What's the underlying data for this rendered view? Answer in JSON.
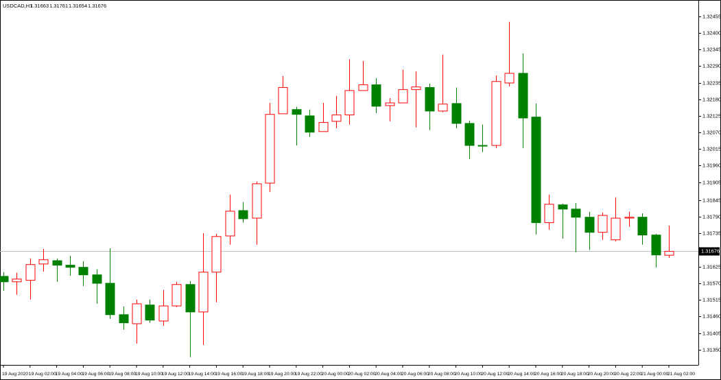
{
  "chart_data": {
    "type": "candlestick",
    "symbol": "USDCAD,H1",
    "categories": [
      "19 Aug 2020",
      null,
      "19 Aug 02:00",
      null,
      "19 Aug 04:00",
      null,
      "19 Aug 06:00",
      null,
      "19 Aug 08:00",
      null,
      "19 Aug 10:00",
      null,
      "19 Aug 12:00",
      null,
      "19 Aug 14:00",
      null,
      "19 Aug 16:00",
      null,
      "19 Aug 18:00",
      null,
      "19 Aug 20:00",
      null,
      "19 Aug 22:00",
      null,
      "20 Aug 00:00",
      null,
      "20 Aug 02:00",
      null,
      "20 Aug 04:00",
      null,
      "20 Aug 06:00",
      null,
      "20 Aug 08:00",
      null,
      "20 Aug 10:00",
      null,
      "20 Aug 12:00",
      null,
      "20 Aug 14:00",
      null,
      "20 Aug 16:00",
      null,
      "20 Aug 18:00",
      null,
      "20 Aug 20:00",
      null,
      "20 Aug 22:00",
      null,
      "21 Aug 00:00",
      null,
      "21 Aug 02:00"
    ],
    "open": [
      1.31593,
      1.31575,
      1.3158,
      1.31634,
      1.31645,
      1.3163,
      1.31623,
      1.31598,
      1.3157,
      1.31466,
      1.31436,
      1.31498,
      1.31445,
      1.31495,
      1.31566,
      1.31475,
      1.31607,
      1.31727,
      1.31811,
      1.31786,
      1.31902,
      1.32132,
      1.32146,
      1.32125,
      1.32073,
      1.32107,
      1.32128,
      1.32209,
      1.32228,
      1.32159,
      1.32168,
      1.32212,
      1.32219,
      1.32141,
      1.32166,
      1.321,
      1.32027,
      1.32027,
      1.32234,
      1.32266,
      1.32121,
      1.31771,
      1.3183,
      1.31816,
      1.31789,
      1.31739,
      1.31714,
      1.31786,
      1.31789,
      1.3173,
      1.31663
    ],
    "high": [
      1.31607,
      1.31605,
      1.31652,
      1.31684,
      1.31652,
      1.31661,
      1.31643,
      1.31616,
      1.31686,
      1.31493,
      1.31516,
      1.31516,
      1.31548,
      1.31575,
      1.31577,
      1.31736,
      1.31734,
      1.31864,
      1.31839,
      1.31907,
      1.32168,
      1.32257,
      1.32155,
      1.32146,
      1.32168,
      1.32191,
      1.32312,
      1.32307,
      1.3225,
      1.32184,
      1.32278,
      1.32273,
      1.32232,
      1.32328,
      1.32219,
      1.32109,
      1.32096,
      1.32259,
      1.32437,
      1.32332,
      1.32166,
      1.31864,
      1.31834,
      1.31836,
      1.31807,
      1.31805,
      1.31855,
      1.31807,
      1.31802,
      1.31734,
      1.31761
    ],
    "low": [
      1.31545,
      1.31532,
      1.31516,
      1.31609,
      1.31575,
      1.31595,
      1.31561,
      1.31502,
      1.31452,
      1.31416,
      1.3137,
      1.31439,
      1.31429,
      1.31491,
      1.31325,
      1.31366,
      1.31507,
      1.31698,
      1.31771,
      1.31698,
      1.31873,
      1.32132,
      1.32027,
      1.32055,
      1.32073,
      1.32084,
      1.32096,
      1.32209,
      1.32134,
      1.32107,
      1.32168,
      1.32087,
      1.32078,
      1.32137,
      1.32084,
      1.31982,
      1.32005,
      1.32018,
      1.32223,
      1.32018,
      1.31732,
      1.31748,
      1.31718,
      1.31673,
      1.3168,
      1.31714,
      1.31709,
      1.31757,
      1.31698,
      1.31623,
      1.31654
    ],
    "close": [
      1.31575,
      1.31584,
      1.31632,
      1.31648,
      1.3163,
      1.31623,
      1.31598,
      1.3157,
      1.31466,
      1.31439,
      1.31502,
      1.31448,
      1.31495,
      1.31566,
      1.31475,
      1.31607,
      1.31725,
      1.31809,
      1.31784,
      1.319,
      1.3213,
      1.32219,
      1.3213,
      1.32071,
      1.32103,
      1.32128,
      1.32209,
      1.32228,
      1.32157,
      1.32168,
      1.32212,
      1.32221,
      1.32141,
      1.32164,
      1.321,
      1.32027,
      1.32025,
      1.32239,
      1.32266,
      1.32118,
      1.31771,
      1.31832,
      1.31816,
      1.31789,
      1.31739,
      1.31795,
      1.31786,
      1.31789,
      1.3173,
      1.31664,
      1.31676
    ],
    "ylim": [
      1.31304,
      1.325
    ],
    "yticks": [
      1.32455,
      {
        "value": 1.324,
        "label": "1.32400"
      },
      1.32345,
      {
        "value": 1.3229,
        "label": "1.32290"
      },
      1.32235,
      {
        "value": 1.3218,
        "label": "1.32180"
      },
      1.32125,
      {
        "value": 1.3207,
        "label": "1.32070"
      },
      1.32015,
      {
        "value": 1.3196,
        "label": "1.31960"
      },
      1.31905,
      1.31845,
      {
        "value": 1.3179,
        "label": "1.31790"
      },
      1.31735,
      1.31625,
      {
        "value": 1.3157,
        "label": "1.31570"
      },
      1.31515,
      {
        "value": 1.3146,
        "label": "1.31460"
      },
      1.31405,
      {
        "value": 1.3135,
        "label": "1.31350"
      }
    ],
    "current_price": 1.31676,
    "up_color": "#ff0000",
    "down_color": "#008000",
    "price_line_color": "#c0c0c0"
  }
}
